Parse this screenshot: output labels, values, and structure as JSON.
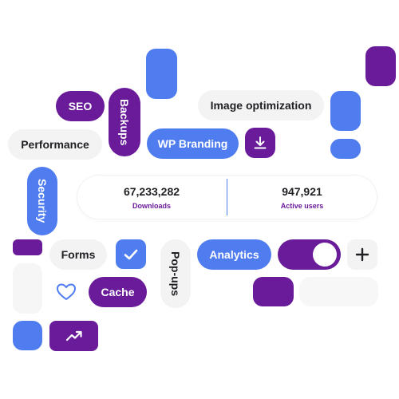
{
  "tags": {
    "seo": "SEO",
    "backups": "Backups",
    "image_optimization": "Image optimization",
    "performance": "Performance",
    "wp_branding": "WP Branding",
    "security": "Security",
    "forms": "Forms",
    "pop_ups": "Pop-ups",
    "analytics": "Analytics",
    "cache": "Cache"
  },
  "stats": {
    "downloads_value": "67,233,282",
    "downloads_label": "Downloads",
    "active_users_value": "947,921",
    "active_users_label": "Active users"
  },
  "toggle": {
    "state": "on"
  },
  "icons": [
    "download-icon",
    "checkmark-icon",
    "plus-icon",
    "heart-icon",
    "trending-up-icon"
  ],
  "colors": {
    "purple": "#6a1b9a",
    "blue": "#4f7df0",
    "gray": "#f3f3f4"
  }
}
